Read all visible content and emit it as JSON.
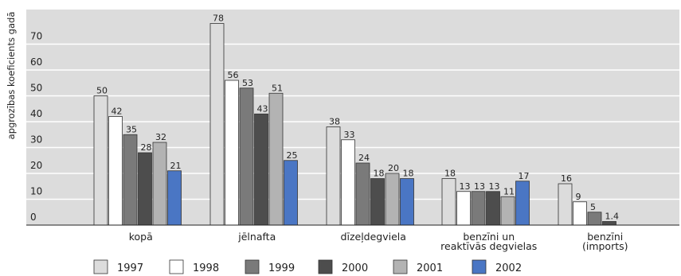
{
  "chart_data": {
    "type": "bar",
    "ylabel": "apgrozības koeficients gadā",
    "ylim": [
      0,
      80
    ],
    "yticks": [
      0,
      10,
      20,
      30,
      40,
      50,
      60,
      70
    ],
    "grid": true,
    "legend_position": "bottom",
    "categories": [
      [
        "kopā"
      ],
      [
        "jēlnafta"
      ],
      [
        "dīzeļdegviela"
      ],
      [
        "benzīni un",
        "reaktīvās degvielas"
      ],
      [
        "benzīni",
        "(imports)"
      ]
    ],
    "series": [
      {
        "name": "1997",
        "color": "#dcdcdc",
        "values": [
          50,
          78,
          38,
          18,
          16
        ],
        "labels": [
          "50",
          "78",
          "38",
          "18",
          "16"
        ]
      },
      {
        "name": "1998",
        "color": "#ffffff",
        "values": [
          42,
          56,
          33,
          13,
          9
        ],
        "labels": [
          "42",
          "56",
          "33",
          "13",
          "9"
        ]
      },
      {
        "name": "1999",
        "color": "#7a7a7a",
        "values": [
          35,
          53,
          24,
          13,
          5
        ],
        "labels": [
          "35",
          "53",
          "24",
          "13",
          "5"
        ]
      },
      {
        "name": "2000",
        "color": "#4d4d4d",
        "values": [
          28,
          43,
          18,
          13,
          1.4
        ],
        "labels": [
          "28",
          "43",
          "18",
          "13",
          "1.4"
        ]
      },
      {
        "name": "2001",
        "color": "#b3b3b3",
        "values": [
          32,
          51,
          20,
          11,
          null
        ],
        "labels": [
          "32",
          "51",
          "20",
          "11",
          ""
        ]
      },
      {
        "name": "2002",
        "color": "#4a76c4",
        "values": [
          21,
          25,
          18,
          17,
          null
        ],
        "labels": [
          "21",
          "25",
          "18",
          "17",
          ""
        ]
      }
    ]
  }
}
